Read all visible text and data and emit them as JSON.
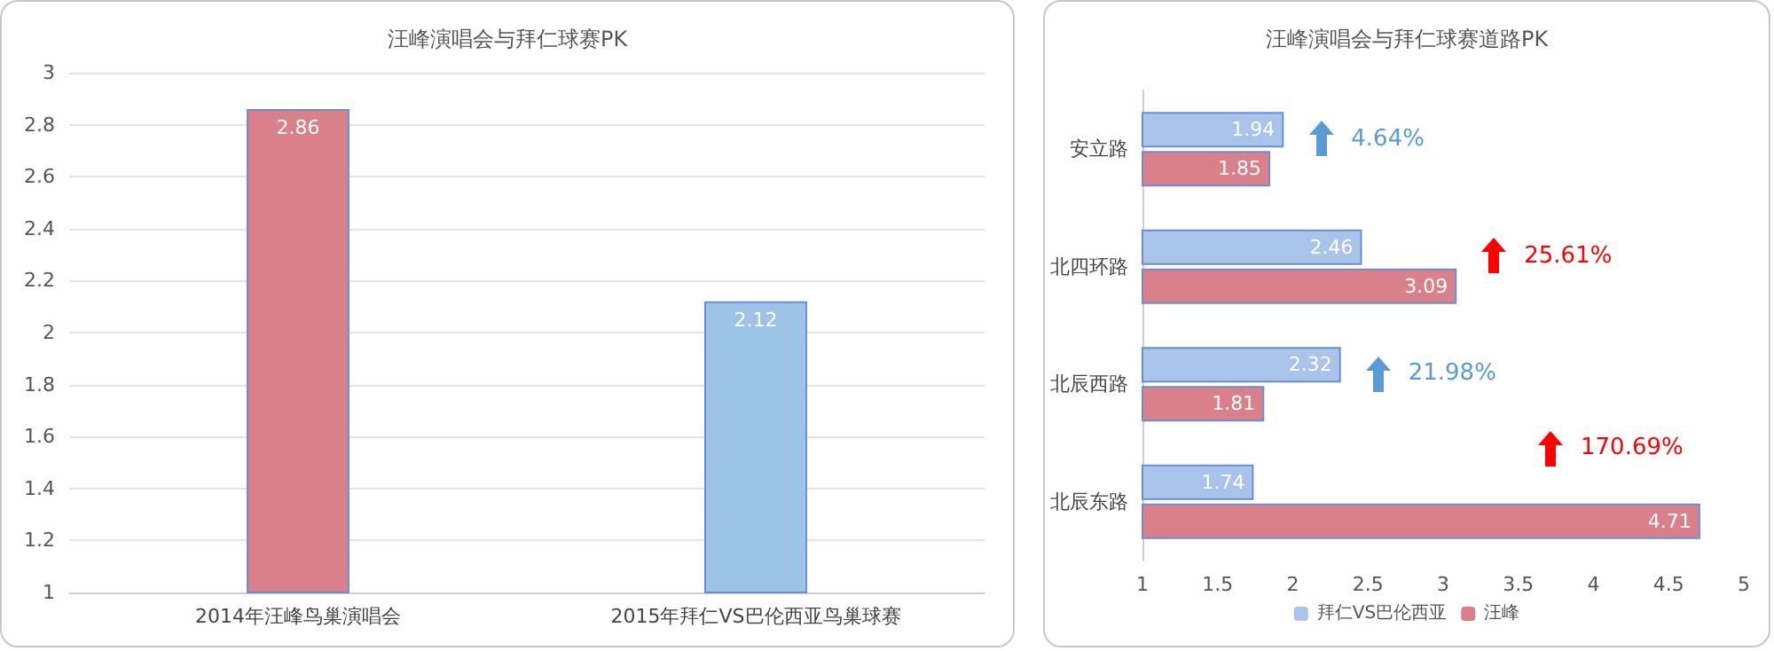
{
  "chart_data": [
    {
      "type": "bar",
      "title": "汪峰演唱会与拜仁球赛PK",
      "categories": [
        "2014年汪峰鸟巢演唱会",
        "2015年拜仁VS巴伦西亚鸟巢球赛"
      ],
      "values": [
        2.86,
        2.12
      ],
      "colors": [
        "#d9808a",
        "#9dc3e6"
      ],
      "ylim": [
        1,
        3
      ],
      "yticks": [
        1,
        1.2,
        1.4,
        1.6,
        1.8,
        2,
        2.2,
        2.4,
        2.6,
        2.8,
        3
      ],
      "grid": "y",
      "data_labels": true,
      "legend": false
    },
    {
      "type": "bar",
      "orientation": "horizontal",
      "title": "汪峰演唱会与拜仁球赛道路PK",
      "categories": [
        "安立路",
        "北四环路",
        "北辰西路",
        "北辰东路"
      ],
      "series": [
        {
          "name": "拜仁VS巴伦西亚",
          "color": "#a9c4ea",
          "values": [
            1.94,
            2.46,
            2.32,
            1.74
          ]
        },
        {
          "name": "汪峰",
          "color": "#d9808a",
          "values": [
            1.85,
            3.09,
            1.81,
            4.71
          ]
        }
      ],
      "xlim": [
        1,
        5
      ],
      "xticks": [
        1,
        1.5,
        2,
        2.5,
        3,
        3.5,
        4,
        4.5,
        5
      ],
      "grid": false,
      "data_labels": true,
      "legend": "bottom",
      "annotations": [
        "4.64%",
        "25.61%",
        "21.98%",
        "170.69%"
      ]
    }
  ]
}
